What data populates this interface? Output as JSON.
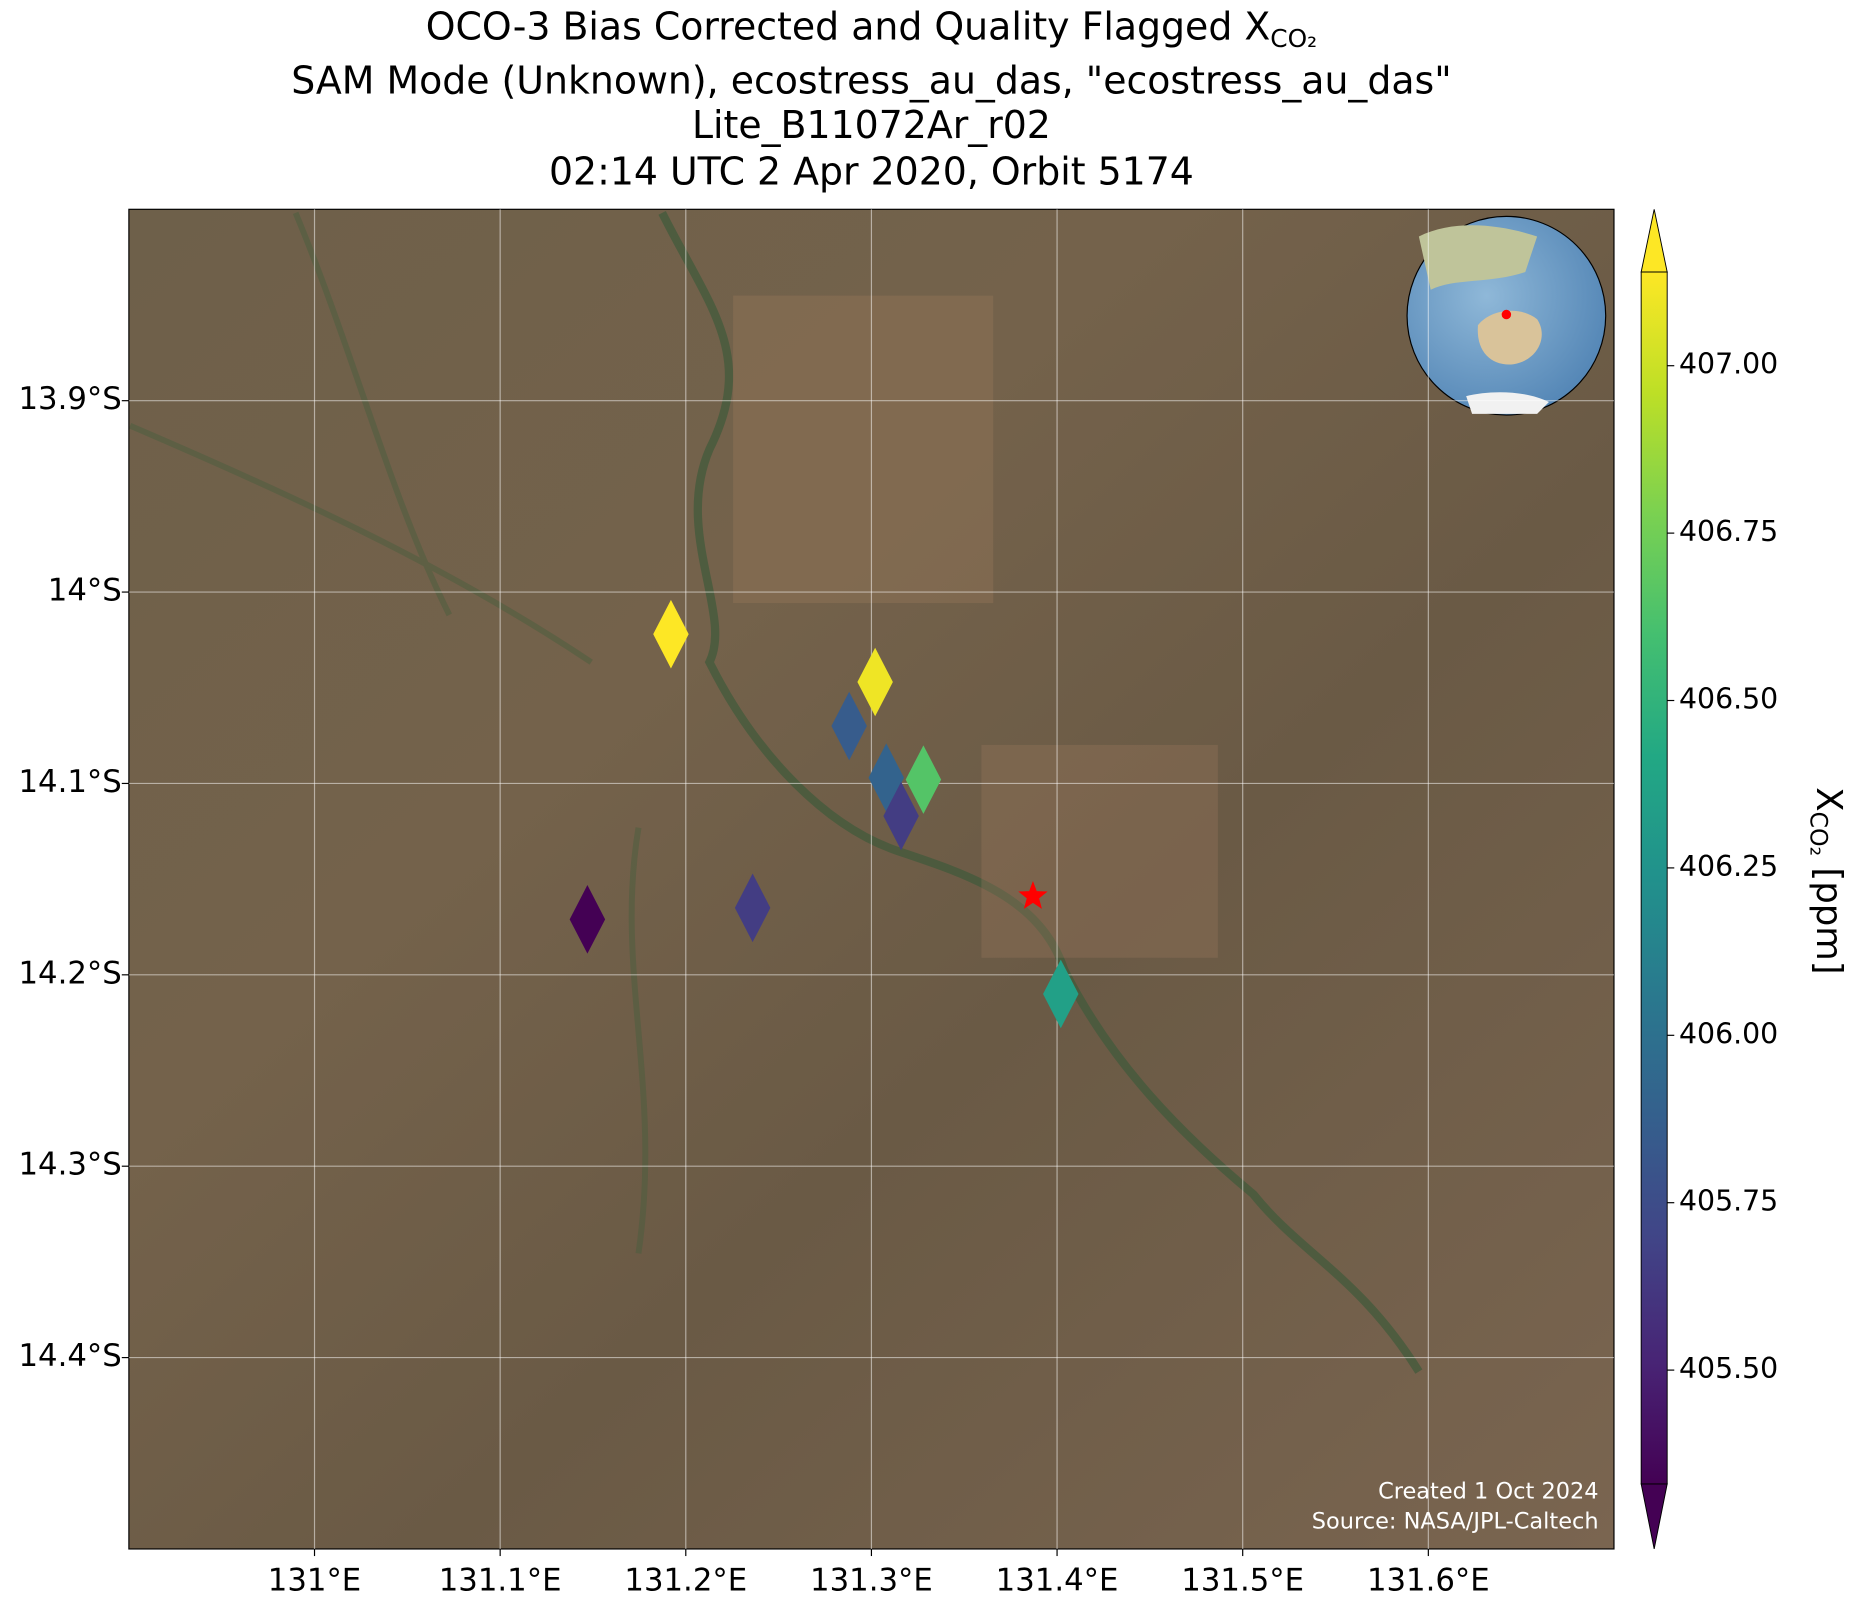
{
  "chart_data": {
    "type": "scatter",
    "title": {
      "text": "OCO-3 Bias Corrected and Quality Flagged X",
      "subscript": "CO₂"
    },
    "subtitle": [
      "SAM Mode (Unknown), ecostress_au_das, \"ecostress_au_das\"",
      "Lite_B11072Ar_r02",
      "02:14 UTC 2 Apr 2020, Orbit 5174"
    ],
    "x": [
      131.192,
      131.302,
      131.288,
      131.308,
      131.328,
      131.316,
      131.236,
      131.147,
      131.402
    ],
    "y": [
      -14.022,
      -14.047,
      -14.07,
      -14.097,
      -14.098,
      -14.117,
      -14.165,
      -14.171,
      -14.21
    ],
    "values": [
      407.15,
      407.1,
      405.85,
      405.9,
      406.65,
      405.65,
      405.65,
      405.3,
      406.35
    ],
    "site": {
      "x": 131.387,
      "y": -14.159,
      "color": "#ff0000"
    },
    "xlim": [
      130.9,
      131.7
    ],
    "ylim": [
      -14.5,
      -13.8
    ],
    "xticks": [
      {
        "value": 131.0,
        "label": "131°E"
      },
      {
        "value": 131.1,
        "label": "131.1°E"
      },
      {
        "value": 131.2,
        "label": "131.2°E"
      },
      {
        "value": 131.3,
        "label": "131.3°E"
      },
      {
        "value": 131.4,
        "label": "131.4°E"
      },
      {
        "value": 131.5,
        "label": "131.5°E"
      },
      {
        "value": 131.6,
        "label": "131.6°E"
      }
    ],
    "yticks": [
      {
        "value": -13.9,
        "label": "13.9°S"
      },
      {
        "value": -14.0,
        "label": "14°S"
      },
      {
        "value": -14.1,
        "label": "14.1°S"
      },
      {
        "value": -14.2,
        "label": "14.2°S"
      },
      {
        "value": -14.3,
        "label": "14.3°S"
      },
      {
        "value": -14.4,
        "label": "14.4°S"
      }
    ],
    "grid": true,
    "colormap": "viridis",
    "clim": [
      405.33,
      407.14
    ],
    "cticks": [
      {
        "value": 405.5,
        "label": "405.50"
      },
      {
        "value": 405.75,
        "label": "405.75"
      },
      {
        "value": 406.0,
        "label": "406.00"
      },
      {
        "value": 406.25,
        "label": "406.25"
      },
      {
        "value": 406.5,
        "label": "406.50"
      },
      {
        "value": 406.75,
        "label": "406.75"
      },
      {
        "value": 407.0,
        "label": "407.00"
      }
    ],
    "colorbar_label": {
      "text": "X",
      "subscript": "CO₂",
      "unit": " [ppm]"
    },
    "annotations": [
      "Created 1 Oct 2024",
      "Source: NASA/JPL-Caltech"
    ]
  }
}
